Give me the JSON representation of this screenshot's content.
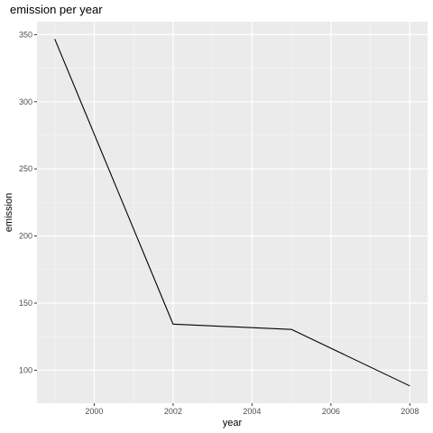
{
  "chart_data": {
    "type": "line",
    "title": "emission per year",
    "xlabel": "year",
    "ylabel": "emission",
    "x": [
      1999,
      2002,
      2005,
      2008
    ],
    "series": [
      {
        "values": [
          346.8,
          134.3,
          130.4,
          88.3
        ]
      }
    ],
    "xlim": [
      1998.55,
      2008.45
    ],
    "ylim": [
      75.4,
      359.7
    ],
    "x_ticks": [
      2000,
      2002,
      2004,
      2006,
      2008
    ],
    "x_tick_labels": [
      "2000",
      "2002",
      "2004",
      "2006",
      "2008"
    ],
    "y_ticks": [
      100,
      150,
      200,
      250,
      300,
      350
    ],
    "y_tick_labels": [
      "100",
      "150",
      "200",
      "250",
      "300",
      "350"
    ],
    "grid": true,
    "legend": "none"
  },
  "colors": {
    "panel_background": "#ebebeb",
    "grid_major": "#ffffff",
    "grid_minor": "#f5f5f5",
    "line": "#000000",
    "tick_label": "#4d4d4d",
    "tick_mark": "#333333"
  }
}
